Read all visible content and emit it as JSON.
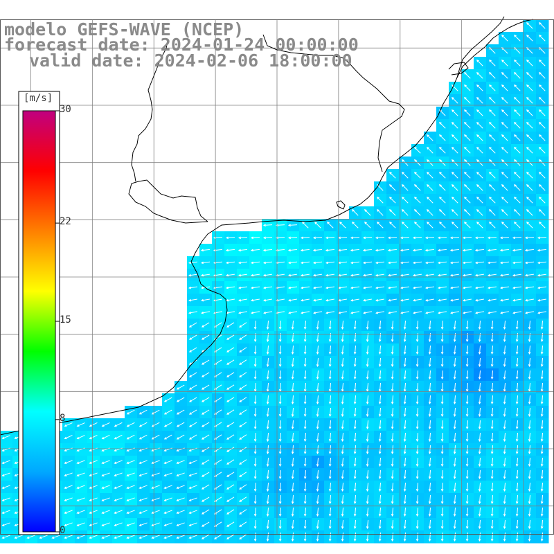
{
  "title": {
    "model": "modelo GEFS-WAVE (NCEP)",
    "forecast": "forecast date: 2024-01-24 00:00:00",
    "valid": "valid date: 2024-02-06 18:00:00"
  },
  "colorbar": {
    "unit": "[m/s]",
    "min": 0,
    "max": 30,
    "ticks": [
      {
        "value": 30,
        "label": "30"
      },
      {
        "value": 22,
        "label": "22"
      },
      {
        "value": 15,
        "label": "15"
      },
      {
        "value": 8,
        "label": "8"
      },
      {
        "value": 0,
        "label": "0"
      }
    ],
    "stops": [
      "#0000ff",
      "#00a8ff",
      "#00ffff",
      "#00ff00",
      "#ffff00",
      "#ff8000",
      "#ff0000",
      "#c00080"
    ]
  },
  "map": {
    "variable": "wind speed and direction",
    "lon_range": [
      -63,
      -45
    ],
    "lat_range": [
      -41,
      -23
    ],
    "gridline_lons": [
      -62,
      -60,
      -58,
      -56,
      -54,
      -52,
      -50,
      -48,
      -46
    ],
    "gridline_lats": [
      -24,
      -26,
      -28,
      -30,
      -32,
      -34,
      -36,
      -38,
      -40
    ],
    "land_color": "#ffffff",
    "coast_color": "#000000",
    "grid_color": "#808080"
  }
}
